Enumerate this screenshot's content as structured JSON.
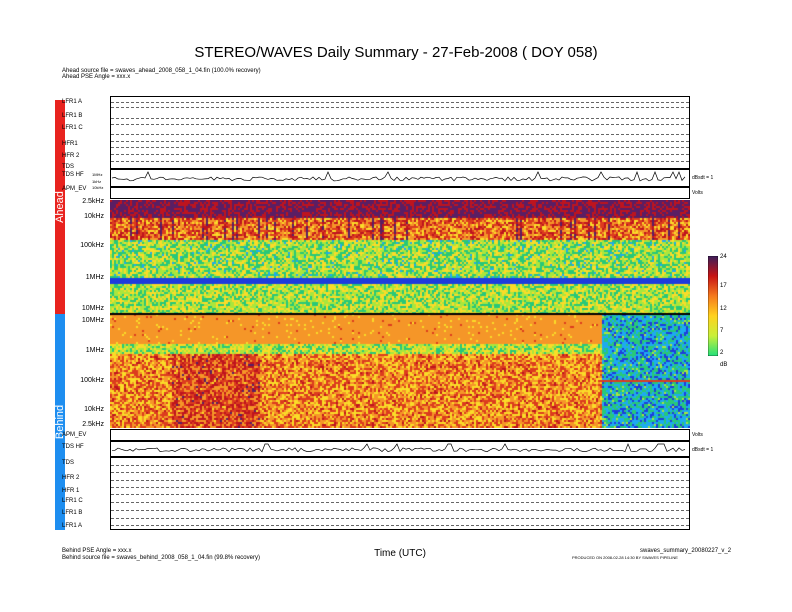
{
  "header": {
    "title": "STEREO/WAVES Daily Summary - 27-Feb-2008 ( DOY 058)",
    "ahead_source": "Ahead source file = swaves_ahead_2008_058_1_04.fin (100.0% recovery)",
    "ahead_angle": "Ahead PSE Angle = xxx.x"
  },
  "sidebar": {
    "ahead": "Ahead",
    "behind": "Behind"
  },
  "ahead_rows": [
    "LFR1 A",
    "LFR1 B",
    "LFR1 C",
    "HFR1",
    "HFR 2",
    "TDS",
    "TDS HF",
    "APM_EV"
  ],
  "behind_rows": [
    "APM_EV",
    "TDS HF",
    "TDS",
    "HFR 2",
    "HFR 1",
    "LFR1 C",
    "LFR1 B",
    "LFR1 A"
  ],
  "ahead_freq_labels": [
    "2.5kHz",
    "10kHz",
    "100kHz",
    "1MHz",
    "10MHz"
  ],
  "behind_freq_labels": [
    "10MHz",
    "1MHz",
    "100kHz",
    "10kHz",
    "2.5kHz"
  ],
  "tds_axis": [
    "1MHz",
    "1kHz",
    "10kHz"
  ],
  "colorbar": {
    "ticks": [
      "24",
      "17",
      "12",
      "7",
      "2"
    ],
    "unit": "dB"
  },
  "right_labels": {
    "volts": "Volts",
    "db": "dBsdt = 1"
  },
  "footer": {
    "xlabel": "Time (UTC)",
    "behind_angle": "Behind PSE Angle = xxx.x",
    "behind_source": "Behind source file = swaves_behind_2008_058_1_04.fin (99.8% recovery)",
    "summary_file": "swaves_summary_20080227_v_2",
    "produced": "PRODUCED ON 2008-02-28 14:30 BY SWAVES PIPELINE"
  },
  "chart_data": {
    "type": "heatmap",
    "title": "STEREO/WAVES Daily Summary - 27-Feb-2008 ( DOY 058)",
    "xlabel": "Time (UTC)",
    "colorbar_range_db": [
      2,
      24
    ],
    "panels": [
      {
        "name": "Ahead",
        "freq_range": [
          "2.5kHz",
          "10MHz"
        ],
        "axis": "log-frequency, low at top"
      },
      {
        "name": "Behind",
        "freq_range": [
          "10MHz",
          "2.5kHz"
        ],
        "axis": "log-frequency, high at top"
      }
    ]
  }
}
